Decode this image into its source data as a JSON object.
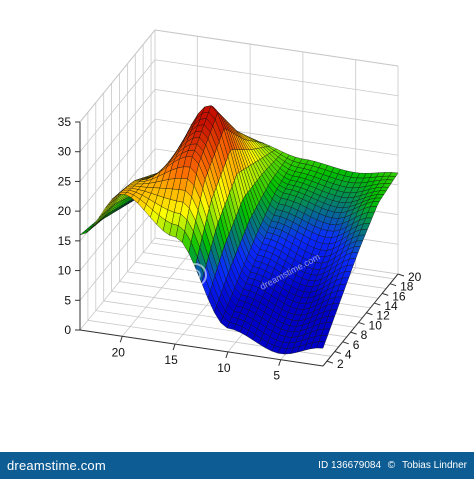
{
  "chart_data": {
    "type": "surface",
    "title": "",
    "xlabel": "",
    "ylabel": "",
    "zlabel": "",
    "x_ticks": [
      5,
      10,
      15,
      20
    ],
    "y_ticks": [
      2,
      4,
      6,
      8,
      10,
      12,
      14,
      16,
      18,
      20
    ],
    "z_ticks": [
      0,
      5,
      10,
      15,
      20,
      25,
      30,
      35
    ],
    "xlim": [
      1,
      24
    ],
    "ylim": [
      1,
      20
    ],
    "zlim": [
      0,
      35
    ],
    "grid": true,
    "colormap": [
      "#0000c8",
      "#0a2cff",
      "#00c000",
      "#ffff00",
      "#ff7000",
      "#c81000"
    ],
    "surface_samples_y_at_x": [
      {
        "x": 24,
        "y": [
          1,
          5,
          10,
          15,
          20
        ],
        "z": [
          16,
          15,
          13,
          11,
          10
        ]
      },
      {
        "x": 20,
        "y": [
          1,
          5,
          10,
          15,
          20
        ],
        "z": [
          24,
          23,
          20,
          17,
          14
        ]
      },
      {
        "x": 15,
        "y": [
          1,
          5,
          10,
          15,
          20
        ],
        "z": [
          18,
          28,
          33,
          25,
          19
        ]
      },
      {
        "x": 10,
        "y": [
          1,
          5,
          10,
          15,
          20
        ],
        "z": [
          4,
          7,
          11,
          15,
          17
        ]
      },
      {
        "x": 5,
        "y": [
          1,
          5,
          10,
          15,
          20
        ],
        "z": [
          1,
          4,
          8,
          13,
          16
        ]
      },
      {
        "x": 1,
        "y": [
          1,
          5,
          10,
          15,
          20
        ],
        "z": [
          3,
          7,
          12,
          16,
          17
        ]
      }
    ]
  },
  "watermark": {
    "text": "dreamstime.com"
  },
  "footer": {
    "brand_prefix": "dreams",
    "brand_suffix": "time.com",
    "id_text": "ID 136679084",
    "copyright": "©",
    "author": "Tobias Lindner"
  },
  "colors": {
    "footer_bg": "#0d5c93",
    "grid": "#c8c8c8",
    "axis": "#333333",
    "mesh": "#111111"
  }
}
